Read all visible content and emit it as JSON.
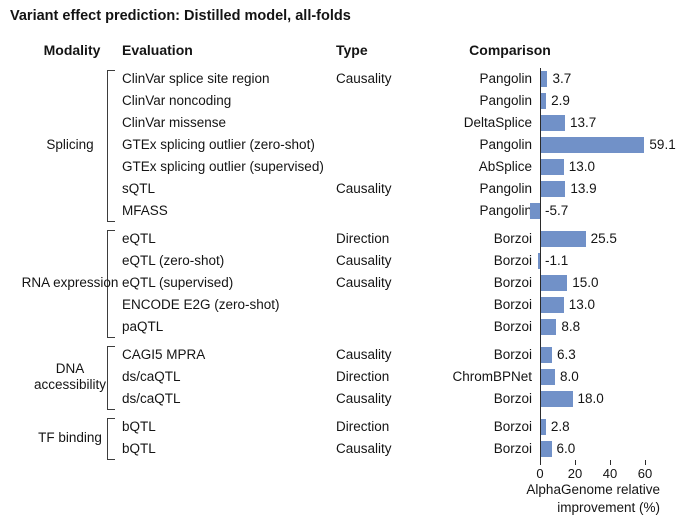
{
  "title": "Variant effect prediction: Distilled model, all-folds",
  "columns": {
    "modality": "Modality",
    "evaluation": "Evaluation",
    "type": "Type",
    "comparison": "Comparison"
  },
  "axis": {
    "ticks": [
      0,
      20,
      40,
      60
    ],
    "label_line1": "AlphaGenome relative",
    "label_line2": "improvement (%)"
  },
  "bar_color": "#7191C8",
  "chart_data": {
    "type": "bar",
    "orientation": "horizontal",
    "title": "Variant effect prediction: Distilled model, all-folds",
    "xlabel": "AlphaGenome relative improvement (%)",
    "xticks": [
      0,
      20,
      40,
      60
    ],
    "xlim": [
      -8,
      66
    ],
    "groups": [
      {
        "modality": "Splicing",
        "rows": [
          {
            "evaluation": "ClinVar splice site region",
            "type": "Causality",
            "comparison": "Pangolin",
            "value": 3.7,
            "label": "3.7"
          },
          {
            "evaluation": "ClinVar noncoding",
            "type": "",
            "comparison": "Pangolin",
            "value": 2.9,
            "label": "2.9"
          },
          {
            "evaluation": "ClinVar missense",
            "type": "",
            "comparison": "DeltaSplice",
            "value": 13.7,
            "label": "13.7"
          },
          {
            "evaluation": "GTEx splicing outlier (zero-shot)",
            "type": "",
            "comparison": "Pangolin",
            "value": 59.1,
            "label": "59.1"
          },
          {
            "evaluation": "GTEx splicing outlier (supervised)",
            "type": "",
            "comparison": "AbSplice",
            "value": 13.0,
            "label": "13.0"
          },
          {
            "evaluation": "sQTL",
            "type": "Causality",
            "comparison": "Pangolin",
            "value": 13.9,
            "label": "13.9"
          },
          {
            "evaluation": "MFASS",
            "type": "",
            "comparison": "Pangolin",
            "value": -5.7,
            "label": "-5.7"
          }
        ]
      },
      {
        "modality": "RNA expression",
        "rows": [
          {
            "evaluation": "eQTL",
            "type": "Direction",
            "comparison": "Borzoi",
            "value": 25.5,
            "label": "25.5"
          },
          {
            "evaluation": "eQTL (zero-shot)",
            "type": "Causality",
            "comparison": "Borzoi",
            "value": -1.1,
            "label": "-1.1"
          },
          {
            "evaluation": "eQTL (supervised)",
            "type": "Causality",
            "comparison": "Borzoi",
            "value": 15.0,
            "label": "15.0"
          },
          {
            "evaluation": "ENCODE E2G (zero-shot)",
            "type": "",
            "comparison": "Borzoi",
            "value": 13.0,
            "label": "13.0"
          },
          {
            "evaluation": "paQTL",
            "type": "",
            "comparison": "Borzoi",
            "value": 8.8,
            "label": "8.8"
          }
        ]
      },
      {
        "modality": "DNA accessibility",
        "rows": [
          {
            "evaluation": "CAGI5 MPRA",
            "type": "Causality",
            "comparison": "Borzoi",
            "value": 6.3,
            "label": "6.3"
          },
          {
            "evaluation": "ds/caQTL",
            "type": "Direction",
            "comparison": "ChromBPNet",
            "value": 8.0,
            "label": "8.0"
          },
          {
            "evaluation": "ds/caQTL",
            "type": "Causality",
            "comparison": "Borzoi",
            "value": 18.0,
            "label": "18.0"
          }
        ]
      },
      {
        "modality": "TF binding",
        "rows": [
          {
            "evaluation": "bQTL",
            "type": "Direction",
            "comparison": "Borzoi",
            "value": 2.8,
            "label": "2.8"
          },
          {
            "evaluation": "bQTL",
            "type": "Causality",
            "comparison": "Borzoi",
            "value": 6.0,
            "label": "6.0"
          }
        ]
      }
    ]
  }
}
